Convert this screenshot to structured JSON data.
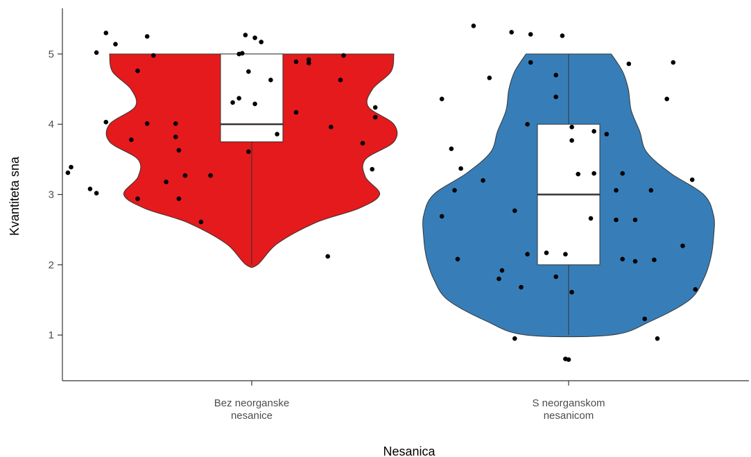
{
  "chart_data": {
    "type": "violin",
    "xlabel": "Nesanica",
    "ylabel": "Kvantiteta sna",
    "ylim": [
      0.35,
      5.65
    ],
    "yticks": [
      1,
      2,
      3,
      4,
      5
    ],
    "grid": false,
    "legend": "none",
    "overlays": [
      "boxplot",
      "jittered points"
    ],
    "groups": [
      {
        "label_lines": [
          "Bez neorganske",
          "nesanice"
        ],
        "color": "#e41a1c",
        "box": {
          "q1": 3.75,
          "median": 4,
          "q3": 5,
          "min": 2,
          "max": 5
        },
        "violin_profile": [
          [
            2.0,
            0.04
          ],
          [
            2.3,
            0.18
          ],
          [
            2.6,
            0.45
          ],
          [
            2.8,
            0.75
          ],
          [
            3.0,
            0.9
          ],
          [
            3.25,
            0.8
          ],
          [
            3.5,
            0.8
          ],
          [
            3.75,
            1.0
          ],
          [
            4.0,
            1.0
          ],
          [
            4.25,
            0.82
          ],
          [
            4.5,
            0.85
          ],
          [
            4.75,
            0.98
          ],
          [
            5.0,
            1.0
          ]
        ],
        "points": [
          [
            -0.46,
            5.3
          ],
          [
            -0.49,
            5.02
          ],
          [
            -0.43,
            5.14
          ],
          [
            -0.33,
            5.25
          ],
          [
            -0.31,
            4.98
          ],
          [
            -0.36,
            4.76
          ],
          [
            -0.46,
            4.03
          ],
          [
            -0.38,
            3.78
          ],
          [
            -0.33,
            4.01
          ],
          [
            -0.24,
            4.01
          ],
          [
            -0.24,
            3.82
          ],
          [
            -0.23,
            3.63
          ],
          [
            -0.57,
            3.39
          ],
          [
            -0.58,
            3.31
          ],
          [
            -0.51,
            3.08
          ],
          [
            -0.49,
            3.02
          ],
          [
            -0.36,
            2.94
          ],
          [
            -0.27,
            3.18
          ],
          [
            -0.21,
            3.27
          ],
          [
            -0.13,
            3.27
          ],
          [
            -0.23,
            2.94
          ],
          [
            -0.16,
            2.61
          ],
          [
            -0.02,
            5.27
          ],
          [
            0.01,
            5.23
          ],
          [
            -0.04,
            5.0
          ],
          [
            -0.03,
            5.01
          ],
          [
            -0.01,
            4.75
          ],
          [
            0.03,
            5.17
          ],
          [
            0.06,
            4.63
          ],
          [
            -0.04,
            4.37
          ],
          [
            -0.06,
            4.31
          ],
          [
            0.01,
            4.29
          ],
          [
            -0.01,
            3.61
          ],
          [
            0.08,
            3.86
          ],
          [
            0.14,
            4.89
          ],
          [
            0.18,
            4.92
          ],
          [
            0.18,
            4.87
          ],
          [
            0.14,
            4.17
          ],
          [
            0.28,
            4.63
          ],
          [
            0.29,
            4.98
          ],
          [
            0.25,
            3.96
          ],
          [
            0.35,
            3.73
          ],
          [
            0.38,
            3.36
          ],
          [
            0.39,
            4.24
          ],
          [
            0.39,
            4.1
          ],
          [
            0.24,
            2.12
          ]
        ]
      },
      {
        "label_lines": [
          "S neorganskom",
          "nesanicom"
        ],
        "color": "#377eb8",
        "box": {
          "q1": 2,
          "median": 3,
          "q3": 4,
          "min": 1,
          "max": 5
        },
        "violin_profile": [
          [
            1.0,
            0.3
          ],
          [
            1.2,
            0.58
          ],
          [
            1.5,
            0.85
          ],
          [
            1.8,
            0.95
          ],
          [
            2.1,
            1.0
          ],
          [
            2.4,
            1.02
          ],
          [
            2.7,
            1.02
          ],
          [
            3.0,
            0.95
          ],
          [
            3.3,
            0.72
          ],
          [
            3.6,
            0.55
          ],
          [
            3.9,
            0.5
          ],
          [
            4.2,
            0.44
          ],
          [
            4.5,
            0.42
          ],
          [
            4.75,
            0.38
          ],
          [
            5.0,
            0.3
          ]
        ],
        "points": [
          [
            -0.3,
            5.4
          ],
          [
            -0.18,
            5.31
          ],
          [
            -0.12,
            5.28
          ],
          [
            -0.02,
            5.26
          ],
          [
            -0.12,
            4.88
          ],
          [
            -0.25,
            4.66
          ],
          [
            -0.04,
            4.7
          ],
          [
            -0.04,
            4.39
          ],
          [
            -0.13,
            4.0
          ],
          [
            -0.4,
            4.36
          ],
          [
            -0.37,
            3.65
          ],
          [
            -0.34,
            3.37
          ],
          [
            -0.36,
            3.06
          ],
          [
            -0.27,
            3.2
          ],
          [
            -0.4,
            2.69
          ],
          [
            -0.35,
            2.08
          ],
          [
            -0.17,
            2.77
          ],
          [
            -0.21,
            1.92
          ],
          [
            -0.22,
            1.8
          ],
          [
            -0.13,
            2.15
          ],
          [
            -0.07,
            2.17
          ],
          [
            -0.01,
            2.15
          ],
          [
            -0.15,
            1.68
          ],
          [
            -0.04,
            1.83
          ],
          [
            0.01,
            1.61
          ],
          [
            0.01,
            3.96
          ],
          [
            0.01,
            3.77
          ],
          [
            0.03,
            3.29
          ],
          [
            0.08,
            3.9
          ],
          [
            0.12,
            3.86
          ],
          [
            0.08,
            3.3
          ],
          [
            0.07,
            2.66
          ],
          [
            0.15,
            3.06
          ],
          [
            0.17,
            3.3
          ],
          [
            0.15,
            2.64
          ],
          [
            0.21,
            2.64
          ],
          [
            0.17,
            2.08
          ],
          [
            0.21,
            2.05
          ],
          [
            0.26,
            3.06
          ],
          [
            0.27,
            2.07
          ],
          [
            0.19,
            4.86
          ],
          [
            0.33,
            4.88
          ],
          [
            0.31,
            4.36
          ],
          [
            0.39,
            3.21
          ],
          [
            0.36,
            2.27
          ],
          [
            0.4,
            1.65
          ],
          [
            0.24,
            1.23
          ],
          [
            0.28,
            0.95
          ],
          [
            -0.17,
            0.95
          ],
          [
            -0.01,
            0.66
          ],
          [
            0.0,
            0.65
          ]
        ]
      }
    ]
  }
}
